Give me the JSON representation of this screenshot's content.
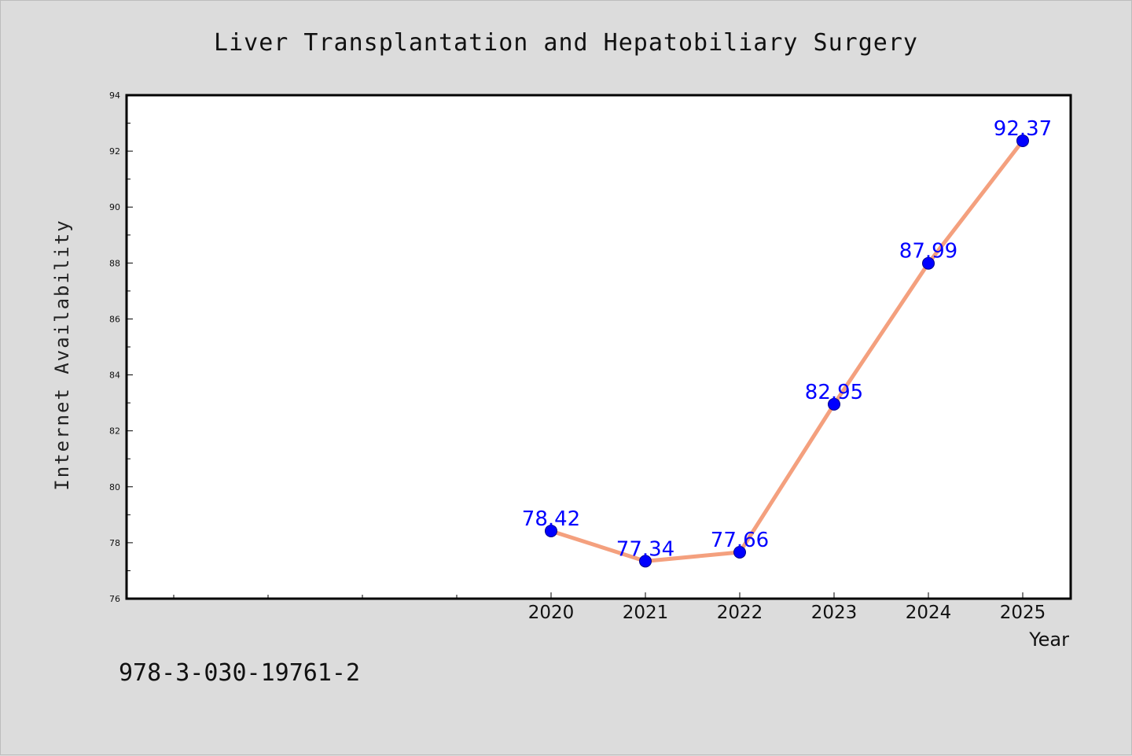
{
  "chart_data": {
    "type": "line",
    "title": "Liver Transplantation and Hepatobiliary Surgery",
    "xlabel": "Year",
    "ylabel": "Internet Availability",
    "categories": [
      "2020",
      "2021",
      "2022",
      "2023",
      "2024",
      "2025"
    ],
    "series": [
      {
        "values": [
          78.42,
          77.34,
          77.66,
          82.95,
          87.99,
          92.37
        ]
      }
    ],
    "data_labels": [
      "78.42",
      "77.34",
      "77.66",
      "82.95",
      "87.99",
      "92.37"
    ],
    "ylim": [
      76,
      94
    ],
    "yticks": [
      "76",
      "78",
      "80",
      "82",
      "84",
      "86",
      "88",
      "90",
      "92",
      "94"
    ],
    "grid": false,
    "line_color": "#f4a07e",
    "marker_color": "#0000ff",
    "label_color": "#0000ff"
  },
  "footer": {
    "isbn": "978-3-030-19761-2"
  }
}
